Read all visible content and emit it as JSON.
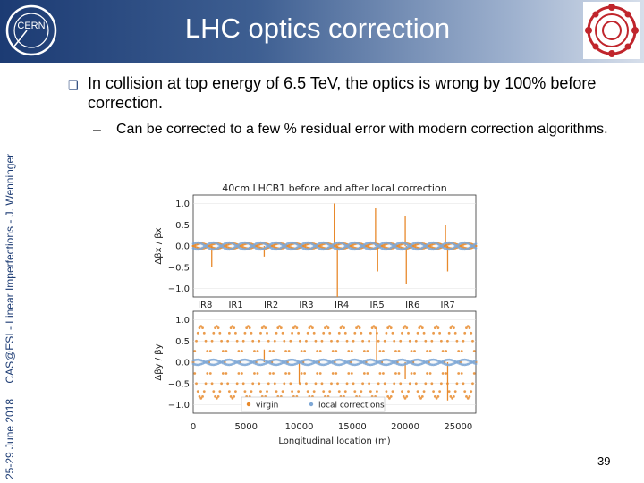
{
  "header": {
    "title": "LHC optics correction",
    "logo_text": "CERN"
  },
  "sidebar": {
    "date": "25-29 June 2018",
    "event": "CAS@ESI - Linear Imperfections - J. Wenninger"
  },
  "content": {
    "bullet_icon": "square-bullet-icon",
    "bullet_text": "In collision at top energy of 6.5 TeV, the optics is wrong by 100% before correction.",
    "sub_dash": "–",
    "sub_text": "Can be corrected to a few % residual error with modern correction algorithms."
  },
  "colors": {
    "header_dark": "#1c3b73",
    "virgin": "#e8892b",
    "corrected": "#7fa8d6"
  },
  "chart_data": {
    "type": "scatter",
    "title": "40cm LHCB1 before and after local correction",
    "xlabel": "Longitudinal location (m)",
    "xlim": [
      0,
      26659
    ],
    "xticks": [
      0,
      5000,
      10000,
      15000,
      20000,
      25000
    ],
    "ir_labels": [
      {
        "label": "IR8",
        "s": 430
      },
      {
        "label": "IR1",
        "s": 3330
      },
      {
        "label": "IR2",
        "s": 6660
      },
      {
        "label": "IR3",
        "s": 9990
      },
      {
        "label": "IR4",
        "s": 13330
      },
      {
        "label": "IR5",
        "s": 16660
      },
      {
        "label": "IR6",
        "s": 20000
      },
      {
        "label": "IR7",
        "s": 23330
      }
    ],
    "panels": [
      {
        "ylabel": "Δβx / βx",
        "ylim": [
          -1.2,
          1.2
        ],
        "yticks": [
          "1.0",
          "0.5",
          "0.0",
          "−0.5",
          "−1.0"
        ],
        "ytick_values": [
          1.0,
          0.5,
          0.0,
          -0.5,
          -1.0
        ],
        "series": [
          {
            "name": "virgin",
            "amplitude": 0.06,
            "spikes": [
              {
                "s": 1750,
                "dy": -0.5
              },
              {
                "s": 6700,
                "dy": -0.25
              },
              {
                "s": 13300,
                "dy": 1.0
              },
              {
                "s": 13600,
                "dy": -1.2
              },
              {
                "s": 17200,
                "dy": 0.9
              },
              {
                "s": 17400,
                "dy": -0.6
              },
              {
                "s": 20000,
                "dy": 0.7
              },
              {
                "s": 20100,
                "dy": -0.9
              },
              {
                "s": 23800,
                "dy": 0.5
              },
              {
                "s": 24000,
                "dy": -0.6
              }
            ]
          },
          {
            "name": "local corrections",
            "amplitude": 0.08,
            "spikes": []
          }
        ]
      },
      {
        "ylabel": "Δβy / βy",
        "ylim": [
          -1.2,
          1.2
        ],
        "yticks": [
          "1.0",
          "0.5",
          "0.0",
          "−0.5",
          "−1.0"
        ],
        "ytick_values": [
          1.0,
          0.5,
          0.0,
          -0.5,
          -1.0
        ],
        "series": [
          {
            "name": "virgin",
            "amplitude": 0.85,
            "spikes": [
              {
                "s": 6700,
                "dy": 0.3
              },
              {
                "s": 10000,
                "dy": -0.5
              },
              {
                "s": 17300,
                "dy": 0.8
              },
              {
                "s": 20000,
                "dy": -0.4
              },
              {
                "s": 24000,
                "dy": -0.9
              }
            ]
          },
          {
            "name": "local corrections",
            "amplitude": 0.06,
            "spikes": []
          }
        ]
      }
    ],
    "legend": {
      "position": "bottom-center",
      "entries": [
        "virgin",
        "local corrections"
      ]
    }
  },
  "slide_number": "39"
}
